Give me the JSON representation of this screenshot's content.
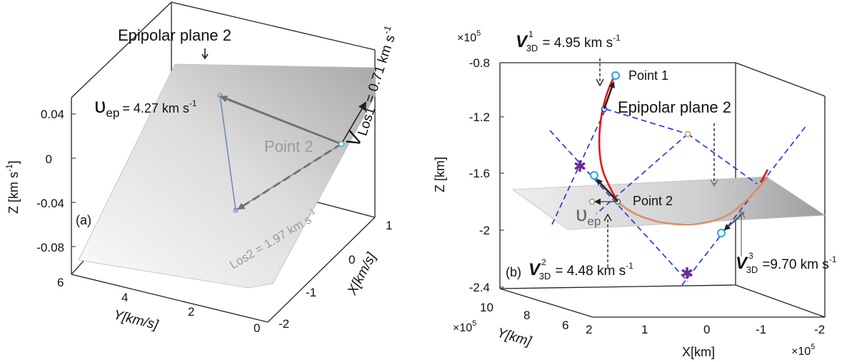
{
  "panel_a": {
    "panel_label": "(a)",
    "epipolar_label": "Epipolar plane 2",
    "point_label": "Point 2",
    "v_ep_symbol": "υ",
    "v_ep_sub": "ep",
    "v_ep_value": "= 4.27 km s",
    "v_ep_exp": "-1",
    "v_los1_symbol": "V",
    "v_los1_sub": "Los1",
    "v_los1_value": "= 0.71 km s",
    "v_los1_exp": "-1",
    "los2_label": "Los2 = 1.97 km s",
    "los2_exp": "-1",
    "z_axis_label": "Z  [km s",
    "z_axis_exp": "-1",
    "z_axis_close": "]",
    "z_ticks": [
      "0.04",
      "0",
      "-0.04",
      "-0.08"
    ],
    "y_axis_label": "Y[km/s]",
    "y_ticks": [
      "6",
      "4",
      "2",
      "0"
    ],
    "x_axis_label": "X[km/s]",
    "x_ticks": [
      "1",
      "0",
      "-1",
      "-2"
    ]
  },
  "panel_b": {
    "panel_label": "(b)",
    "epipolar_label": "Epipolar plane 2",
    "point1_label": "Point 1",
    "point2_label": "Point 2",
    "v3d1_symbol": "V",
    "v3d1_sup": "1",
    "v3d1_sub": "3D",
    "v3d1_value": "= 4.95 km s",
    "v3d1_exp": "-1",
    "v3d2_symbol": "V",
    "v3d2_sup": "2",
    "v3d2_sub": "3D",
    "v3d2_value": "= 4.48 km s",
    "v3d2_exp": "-1",
    "v3d3_symbol": "V",
    "v3d3_sup": "3",
    "v3d3_sub": "3D",
    "v3d3_value": "=9.70 km s",
    "v3d3_exp": "-1",
    "uep_symbol": "υ",
    "uep_sub": "ep",
    "z_scale": "×10",
    "z_scale_exp": "5",
    "z_axis_label": "Z [km]",
    "z_ticks": [
      "-0.8",
      "-1.2",
      "-1.6",
      "-2",
      "-2.4"
    ],
    "y_scale": "×10",
    "y_scale_exp": "5",
    "y_axis_label": "Y[km]",
    "y_ticks": [
      "10",
      "8",
      "6"
    ],
    "x_axis_label": "X[km]",
    "x_ticks": [
      "2",
      "1",
      "0",
      "-1",
      "-2"
    ],
    "x_scale": "×10",
    "x_scale_exp": "5"
  },
  "colors": {
    "axis": "#222222",
    "plane_light": "#f2f2f2",
    "plane_dark": "#b4b4b4",
    "vector_gray": "#7a7a7a",
    "triangle_blue": "#6f8cb8",
    "dash_blue": "#1f2fcf",
    "curve_red": "#e01818",
    "curve_orange": "#d9906a",
    "marker_cyan": "#2aa7e0",
    "marker_purple": "#6b2a9a"
  }
}
